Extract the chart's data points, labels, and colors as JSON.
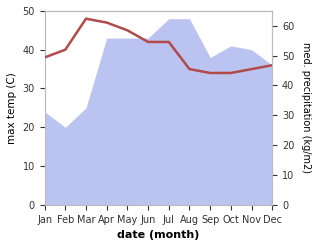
{
  "months": [
    "Jan",
    "Feb",
    "Mar",
    "Apr",
    "May",
    "Jun",
    "Jul",
    "Aug",
    "Sep",
    "Oct",
    "Nov",
    "Dec"
  ],
  "temperature": [
    38,
    40,
    48,
    47,
    45,
    42,
    42,
    35,
    34,
    34,
    35,
    36
  ],
  "precipitation_left_scale": [
    24,
    20,
    25,
    43,
    43,
    43,
    48,
    48,
    38,
    41,
    40,
    36
  ],
  "temp_color": "#b34a4a",
  "precip_fill_color": "#bbc4f0",
  "ylabel_left": "max temp (C)",
  "ylabel_right": "med. precipitation (kg/m2)",
  "xlabel": "date (month)",
  "ylim_left": [
    0,
    50
  ],
  "ylim_right": [
    0,
    65
  ],
  "yticks_left": [
    0,
    10,
    20,
    30,
    40,
    50
  ],
  "yticks_right": [
    0,
    10,
    20,
    30,
    40,
    50,
    60
  ],
  "bg_color": "#ffffff",
  "spine_color": "#bbbbbb"
}
